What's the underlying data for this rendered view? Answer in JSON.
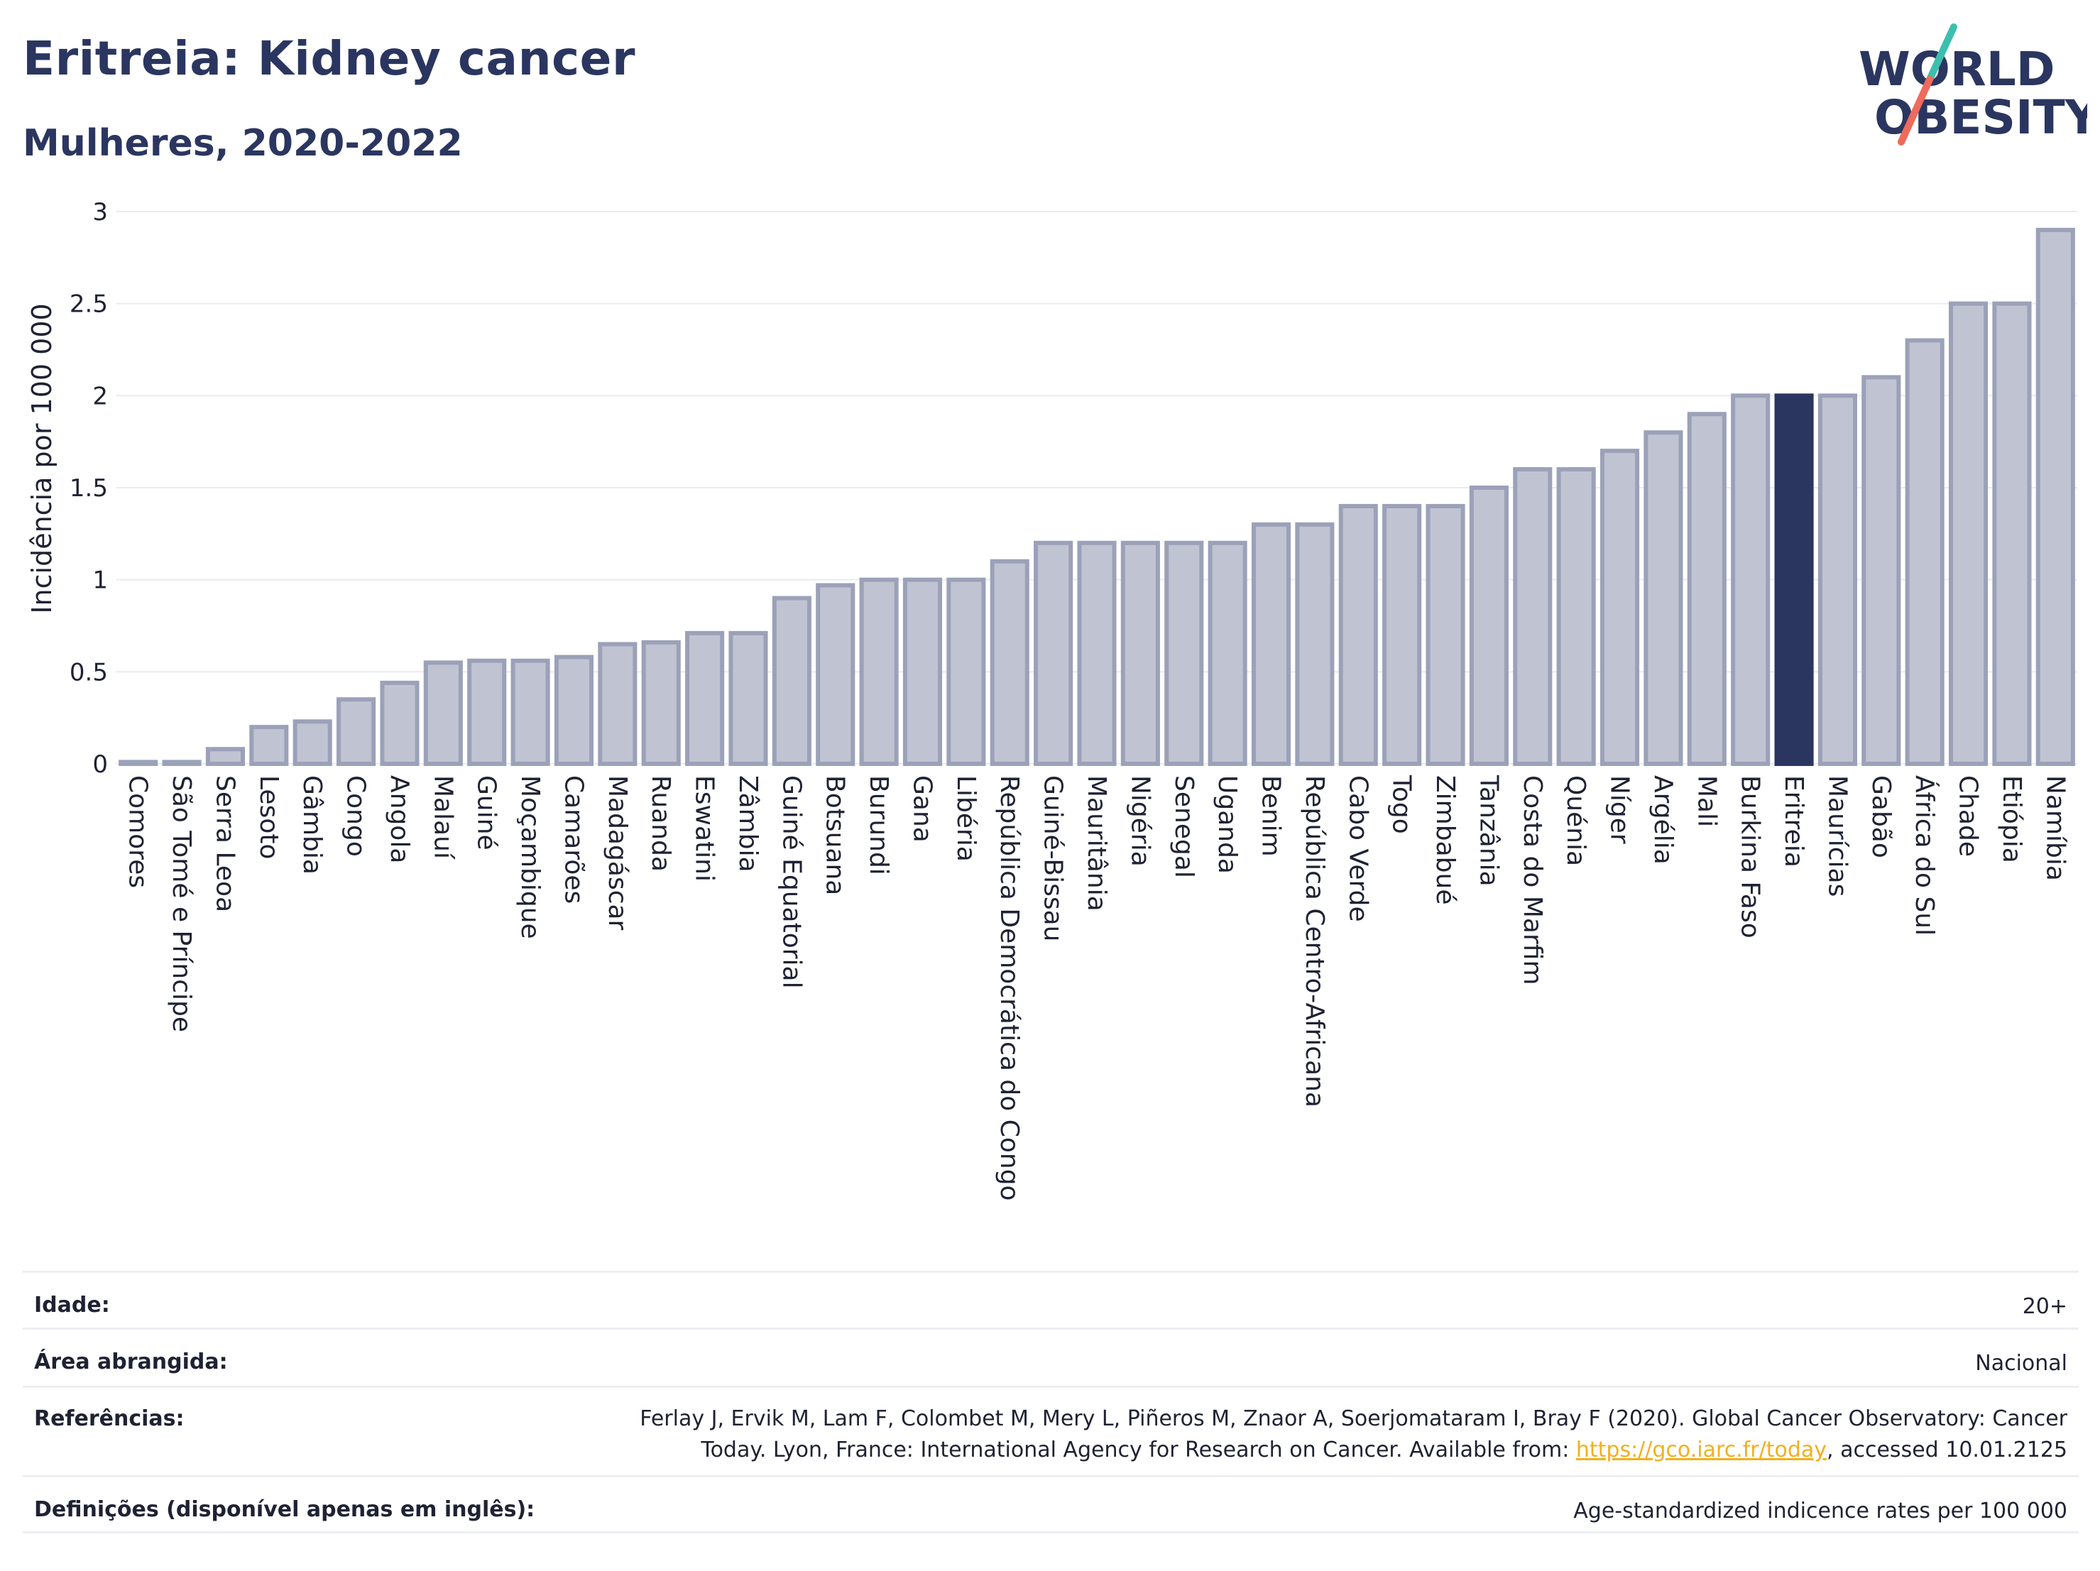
{
  "header": {
    "title": "Eritreia: Kidney cancer",
    "subtitle": "Mulheres, 2020-2022",
    "logo_line1": "WORLD",
    "logo_line2": "OBESITY"
  },
  "chart_data": {
    "type": "bar",
    "title": "Eritreia: Kidney cancer",
    "subtitle": "Mulheres, 2020-2022",
    "xlabel": "",
    "ylabel": "Incidência por 100 000",
    "ylim": [
      0,
      3
    ],
    "yticks": [
      0,
      0.5,
      1,
      1.5,
      2,
      2.5,
      3
    ],
    "ytick_labels": [
      "0",
      "0.5",
      "1",
      "1.5",
      "2",
      "2.5",
      "3"
    ],
    "grid": true,
    "highlight": "Eritreia",
    "categories": [
      "Comores",
      "São Tomé e Príncipe",
      "Serra Leoa",
      "Lesoto",
      "Gâmbia",
      "Congo",
      "Angola",
      "Malauí",
      "Guiné",
      "Moçambique",
      "Camarões",
      "Madagáscar",
      "Ruanda",
      "Eswatini",
      "Zâmbia",
      "Guiné Equatorial",
      "Botsuana",
      "Burundi",
      "Gana",
      "Libéria",
      "República Democrática do Congo",
      "Guiné-Bissau",
      "Mauritânia",
      "Nigéria",
      "Senegal",
      "Uganda",
      "Benim",
      "República Centro-Africana",
      "Cabo Verde",
      "Togo",
      "Zimbabué",
      "Tanzânia",
      "Costa do Marfim",
      "Quénia",
      "Níger",
      "Argélia",
      "Mali",
      "Burkina Faso",
      "Eritreia",
      "Maurícias",
      "Gabão",
      "África do Sul",
      "Chade",
      "Etiópia",
      "Namíbia"
    ],
    "values": [
      0.01,
      0.01,
      0.08,
      0.2,
      0.23,
      0.35,
      0.44,
      0.55,
      0.56,
      0.56,
      0.58,
      0.65,
      0.66,
      0.71,
      0.71,
      0.9,
      0.97,
      1.0,
      1.0,
      1.0,
      1.1,
      1.2,
      1.2,
      1.2,
      1.2,
      1.2,
      1.3,
      1.3,
      1.4,
      1.4,
      1.4,
      1.5,
      1.6,
      1.6,
      1.7,
      1.8,
      1.9,
      2.0,
      2.0,
      2.0,
      2.1,
      2.3,
      2.5,
      2.5,
      2.9
    ],
    "colors": {
      "bar_fill": "#c0c4d2",
      "bar_stroke": "#9ba1b8",
      "highlight": "#2b3660",
      "grid": "#e9ebf0",
      "text": "#1f2233"
    }
  },
  "info": {
    "age_label": "Idade:",
    "age_value": "20+",
    "area_label": "Área abrangida:",
    "area_value": "Nacional",
    "refs_label": "Referências:",
    "refs_line1": "Ferlay J, Ervik M, Lam F, Colombet M, Mery L, Piñeros M, Znaor A, Soerjomataram I, Bray F (2020). Global Cancer Observatory: Cancer",
    "refs_line2_pre": "Today. Lyon, France: International Agency for Research on Cancer. Available from: ",
    "refs_link": "https://gco.iarc.fr/today",
    "refs_line2_post": ", accessed 10.01.2125",
    "defs_label": "Definições (disponível apenas em inglês):",
    "defs_value": "Age-standardized indicence rates per 100 000"
  }
}
